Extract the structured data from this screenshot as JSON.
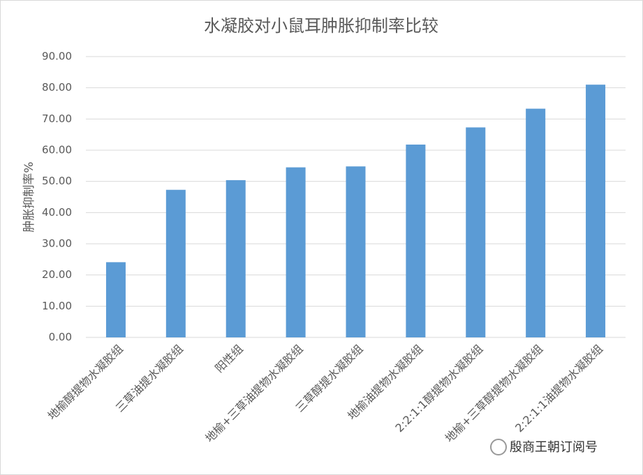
{
  "chart_data": {
    "type": "bar",
    "title": "水凝胶对小鼠耳肿胀抑制率比较",
    "y_label": "肿胀抑制率%",
    "categories": [
      "地榆醇提物水凝胶组",
      "三草油提水凝胶组",
      "阳性组",
      "地榆+三草油提物水凝胶组",
      "三草醇提水凝胶组",
      "地榆油提物水凝胶组",
      "2:2:1:1醇提物水凝胶组",
      "地榆+三草醇提物水凝胶组",
      "2:2:1:1油提物水凝胶组"
    ],
    "values": [
      24.1,
      47.3,
      50.4,
      54.5,
      54.8,
      61.8,
      67.3,
      73.3,
      81.0
    ],
    "color": "#5b9bd5",
    "ylim": [
      0,
      90
    ],
    "yticks": [
      {
        "value": 0,
        "label": "0.00"
      },
      {
        "value": 10,
        "label": "10.00"
      },
      {
        "value": 20,
        "label": "20.00"
      },
      {
        "value": 30,
        "label": "30.00"
      },
      {
        "value": 40,
        "label": "40.00"
      },
      {
        "value": 50,
        "label": "50.00"
      },
      {
        "value": 60,
        "label": "60.00"
      },
      {
        "value": 70,
        "label": "70.00"
      },
      {
        "value": 80,
        "label": "80.00"
      },
      {
        "value": 90,
        "label": "90.00"
      }
    ],
    "grid": true,
    "watermark": "殷商王朝订阅号"
  }
}
